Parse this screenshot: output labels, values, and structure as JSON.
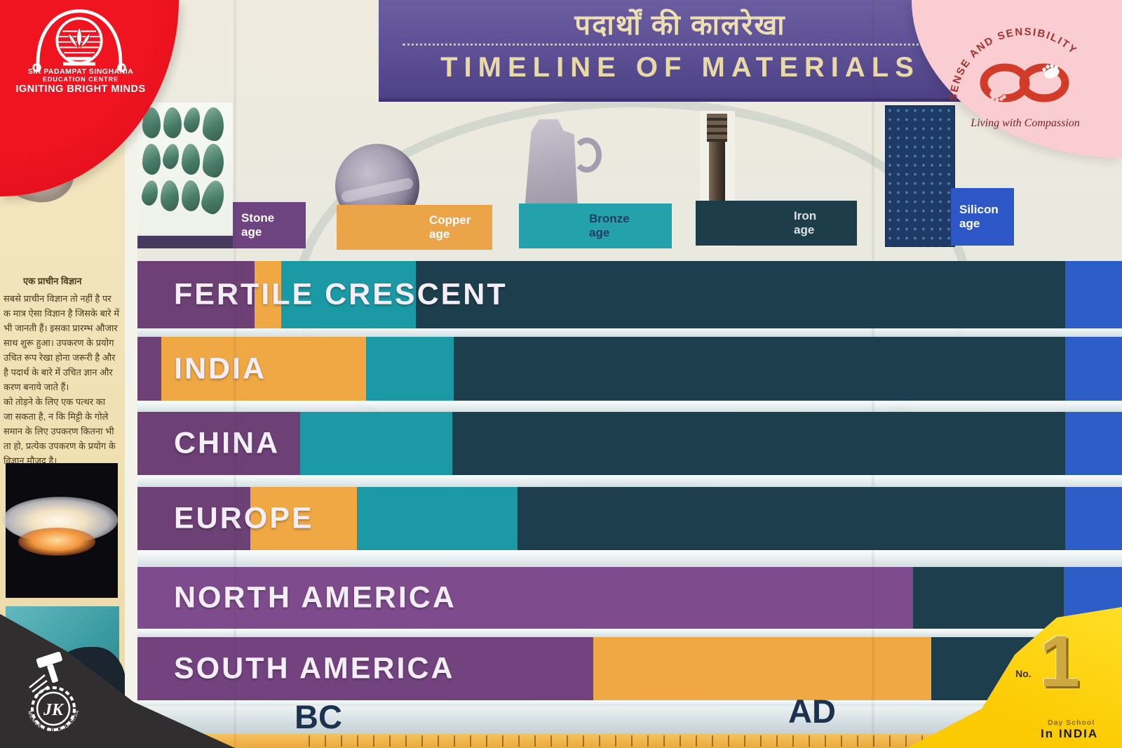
{
  "header": {
    "hindi_title": "पदार्थों की कालरेखा",
    "english_title": "TIMELINE OF MATERIALS"
  },
  "legend": {
    "items": [
      {
        "id": "stone",
        "label": "Stone",
        "label2": "age",
        "color": "#6d4380",
        "icon": "stone-tools"
      },
      {
        "id": "copper",
        "label": "Copper",
        "label2": "age",
        "color": "#eca448",
        "icon": "copper-disc"
      },
      {
        "id": "bronze",
        "label": "Bronze",
        "label2": "age",
        "color": "#24a2ab",
        "icon": "bronze-vessel"
      },
      {
        "id": "iron",
        "label": "Iron",
        "label2": "age",
        "color": "#1d3d4b",
        "icon": "iron-pillar"
      },
      {
        "id": "silicon",
        "label": "Silicon",
        "label2": "age",
        "color": "#2d57c6",
        "icon": "silicon-wafer"
      }
    ]
  },
  "chart_data": {
    "type": "bar",
    "subtype": "horizontal-stacked-timeline",
    "title": "TIMELINE OF MATERIALS",
    "title_hindi": "पदार्थों की कालरेखा",
    "categories": [
      "FERTILE CRESCENT",
      "INDIA",
      "CHINA",
      "EUROPE",
      "NORTH AMERICA",
      "SOUTH AMERICA"
    ],
    "legend_entries": [
      "Stone age",
      "Copper age",
      "Bronze age",
      "Iron age",
      "Silicon age"
    ],
    "x_axis": {
      "left_label": "BC",
      "right_label": "AD",
      "scale": "unlabeled time ruler with tick marks"
    },
    "unit": "percent of visible timeline width",
    "rows": [
      {
        "region": "FERTILE CRESCENT",
        "segments": [
          {
            "age": "stone",
            "pct": 11.9
          },
          {
            "age": "copper",
            "pct": 2.7
          },
          {
            "age": "bronze",
            "pct": 13.7
          },
          {
            "age": "iron",
            "pct": 65.9
          },
          {
            "age": "silicon",
            "pct": 5.8
          }
        ]
      },
      {
        "region": "INDIA",
        "segments": [
          {
            "age": "stone",
            "pct": 2.4
          },
          {
            "age": "copper",
            "pct": 20.8
          },
          {
            "age": "bronze",
            "pct": 8.9
          },
          {
            "age": "iron",
            "pct": 62.1
          },
          {
            "age": "silicon",
            "pct": 5.8
          }
        ]
      },
      {
        "region": "CHINA",
        "segments": [
          {
            "age": "stone",
            "pct": 16.5
          },
          {
            "age": "bronze",
            "pct": 15.5
          },
          {
            "age": "iron",
            "pct": 62.2
          },
          {
            "age": "silicon",
            "pct": 5.8
          }
        ]
      },
      {
        "region": "EUROPE",
        "segments": [
          {
            "age": "stone",
            "pct": 11.5
          },
          {
            "age": "copper",
            "pct": 10.8
          },
          {
            "age": "bronze",
            "pct": 16.3
          },
          {
            "age": "iron",
            "pct": 55.6
          },
          {
            "age": "silicon",
            "pct": 5.8
          }
        ]
      },
      {
        "region": "NORTH AMERICA",
        "segments": [
          {
            "age": "stone",
            "pct": 78.8,
            "color": "#7e4b8c"
          },
          {
            "age": "iron",
            "pct": 15.3
          },
          {
            "age": "silicon",
            "pct": 5.9
          }
        ]
      },
      {
        "region": "SOUTH AMERICA",
        "segments": [
          {
            "age": "stone",
            "pct": 46.3,
            "color": "#73437f"
          },
          {
            "age": "copper",
            "pct": 34.3
          },
          {
            "age": "iron",
            "pct": 19.4
          }
        ]
      }
    ]
  },
  "axis": {
    "bc": "BC",
    "ad": "AD"
  },
  "palette": {
    "stone": "#6d4076",
    "copper": "#efa843",
    "bronze": "#1b99a5",
    "iron": "#1d3e4c",
    "silicon": "#2d5ec8"
  },
  "sidebar": {
    "lines": [
      "एक प्राचीन विज्ञान",
      "सबसे प्राचीन विज्ञान तो नहीं है पर",
      "क मात्र ऐसा विज्ञान है जिसके बारे में",
      "भी जानती हैं। इसका प्रारम्भ औजार",
      "साथ शुरू हुआ। उपकरण के प्रयोग",
      "उचित रूप रेखा होना जरूरी है और",
      "है पदार्थ के बारे में उचित ज्ञान और",
      "करण बनाये जाते हैं।",
      "को तोड़ने के लिए एक पत्थर का",
      "जा सकता है, न कि मिट्टी के गोले",
      "समान के लिए उपकरण कितना भी",
      "ता हो, प्रत्येक उपकरण के प्रयोग के",
      "विज्ञान मौजूद है।"
    ]
  },
  "corners": {
    "top_left": {
      "org_line1": "SIR PADAMPAT SINGHANIA",
      "org_line2": "EDUCATION CENTRE",
      "tagline": "IGNITING BRIGHT MINDS",
      "bg": "#e8111e"
    },
    "top_right": {
      "arc_text": "SENSE AND SENSIBILITY",
      "tagline": "Living with Compassion",
      "bg": "#f9cdd1"
    },
    "bottom_left": {
      "monogram": "JK",
      "arc_text": "MEMBER  J  K  ORGANISATION",
      "bg": "#302e2f"
    },
    "bottom_right": {
      "no_label": "No.",
      "rank": "1",
      "line1": "Day School",
      "line2": "In INDIA",
      "bg": "#fcca02"
    }
  }
}
